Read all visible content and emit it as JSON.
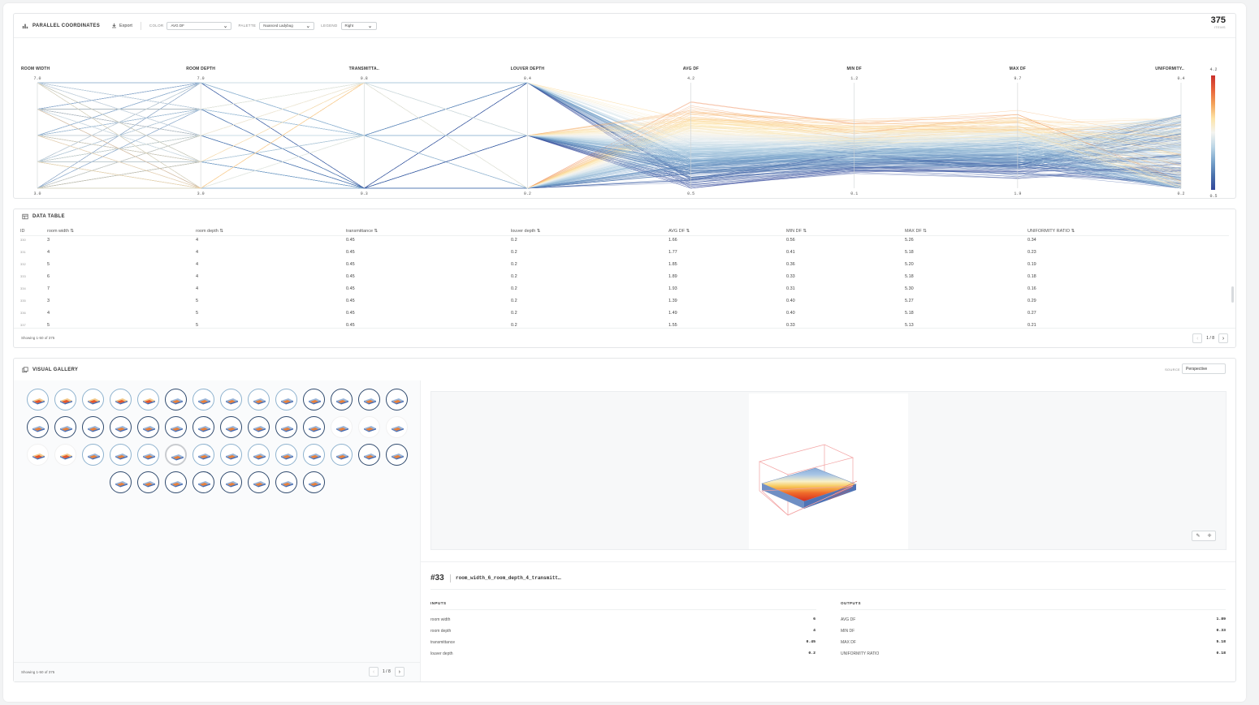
{
  "parallel": {
    "title": "PARALLEL COORDINATES",
    "export_label": "Export",
    "color_label": "COLOR",
    "color_value": "AVG DF",
    "palette_label": "PALETTE",
    "palette_value": "Nuanced Ladybug",
    "legend_label": "LEGEND",
    "legend_value": "Right",
    "count": "375",
    "count_label": "ITEMS",
    "axes": [
      {
        "name": "ROOM WIDTH",
        "max": "7.0",
        "min": "3.0"
      },
      {
        "name": "ROOM DEPTH",
        "max": "7.0",
        "min": "3.0"
      },
      {
        "name": "TRANSMITTA..",
        "max": "0.8",
        "min": "0.3"
      },
      {
        "name": "LOUVER DEPTH",
        "max": "0.4",
        "min": "0.2"
      },
      {
        "name": "AVG DF",
        "max": "4.2",
        "min": "0.5"
      },
      {
        "name": "MIN DF",
        "max": "1.2",
        "min": "0.1"
      },
      {
        "name": "MAX DF",
        "max": "9.7",
        "min": "1.9"
      },
      {
        "name": "UNIFORMITY..",
        "max": "0.4",
        "min": "0.2"
      }
    ],
    "legend_max": "4.2",
    "legend_min": "0.5",
    "palette_colors": [
      "#c9302c",
      "#e8633a",
      "#f3a35a",
      "#fde3a6",
      "#f4f4f0",
      "#bcd6e6",
      "#7aa5cc",
      "#4a72ad",
      "#33479a"
    ]
  },
  "table": {
    "title": "DATA TABLE",
    "columns": [
      "ID",
      "room width",
      "room depth",
      "transmittance",
      "louver depth",
      "AVG DF",
      "MIN DF",
      "MAX DF",
      "UNIFORMITY RATIO"
    ],
    "rows": [
      [
        "330",
        "3",
        "4",
        "0.45",
        "0.2",
        "1.66",
        "0.56",
        "5.26",
        "0.34"
      ],
      [
        "331",
        "4",
        "4",
        "0.45",
        "0.2",
        "1.77",
        "0.41",
        "5.18",
        "0.23"
      ],
      [
        "332",
        "5",
        "4",
        "0.45",
        "0.2",
        "1.85",
        "0.36",
        "5.20",
        "0.19"
      ],
      [
        "333",
        "6",
        "4",
        "0.45",
        "0.2",
        "1.89",
        "0.33",
        "5.18",
        "0.18"
      ],
      [
        "334",
        "7",
        "4",
        "0.45",
        "0.2",
        "1.93",
        "0.31",
        "5.30",
        "0.16"
      ],
      [
        "335",
        "3",
        "5",
        "0.45",
        "0.2",
        "1.39",
        "0.40",
        "5.27",
        "0.29"
      ],
      [
        "336",
        "4",
        "5",
        "0.45",
        "0.2",
        "1.49",
        "0.40",
        "5.18",
        "0.27"
      ],
      [
        "337",
        "5",
        "5",
        "0.45",
        "0.2",
        "1.55",
        "0.33",
        "5.13",
        "0.21"
      ]
    ],
    "showing": "Showing 1-50 of 375",
    "page": "1 / 8"
  },
  "gallery": {
    "title": "VISUAL GALLERY",
    "source_label": "SOURCE",
    "source_value": "Perspective",
    "showing": "Showing 1-50 of 375",
    "page": "1 / 8",
    "selected": {
      "id": "#33",
      "name": "room_width_6_room_depth_4_transmitt…",
      "inputs_title": "INPUTS",
      "outputs_title": "OUTPUTS",
      "inputs": [
        {
          "k": "room width",
          "v": "6"
        },
        {
          "k": "room depth",
          "v": "4"
        },
        {
          "k": "transmittance",
          "v": "0.45"
        },
        {
          "k": "louver depth",
          "v": "0.2"
        }
      ],
      "outputs": [
        {
          "k": "AVG DF",
          "v": "1.89"
        },
        {
          "k": "MIN DF",
          "v": "0.33"
        },
        {
          "k": "MAX DF",
          "v": "5.18"
        },
        {
          "k": "UNIFORMITY RATIO",
          "v": "0.18"
        }
      ]
    }
  }
}
